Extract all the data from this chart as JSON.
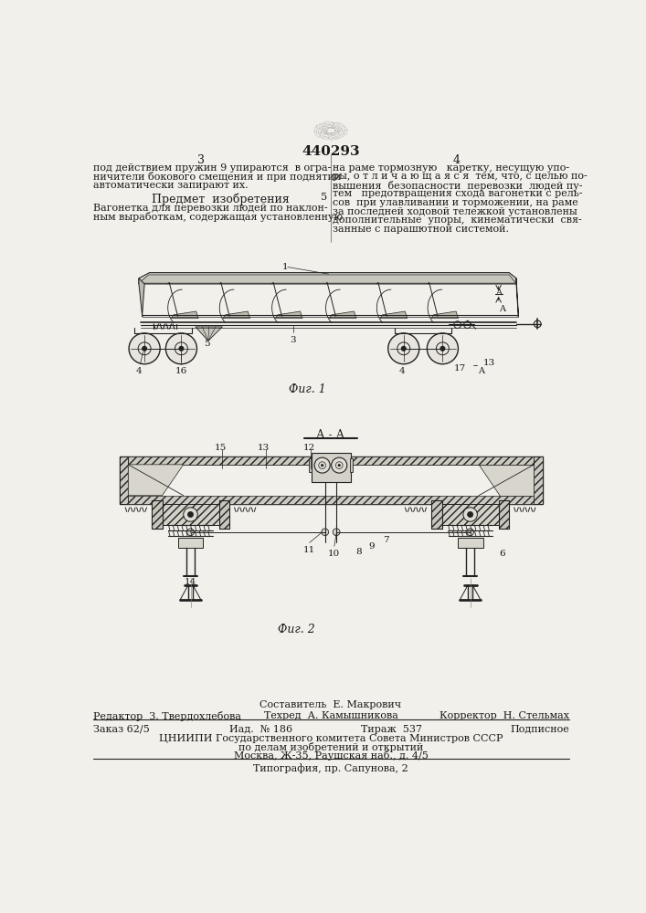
{
  "patent_number": "440293",
  "page_left": "3",
  "page_right": "4",
  "bg_color": "#f2f0eb",
  "text_color": "#1a1a1a",
  "line_color": "#222222",
  "left_col_text": [
    "под действием пружин 9 упираются  в огра-",
    "ничители бокового смещения и при поднятии",
    "автоматически запирают их."
  ],
  "right_col_text": [
    "на раме тормозную   каретку, несущую упо-",
    "ры, о т л и ч а ю щ а я с я  тем, что, с целью по-",
    "вышения  безопасности  перевозки  людей пу-",
    "тем   предотвращения схода вагонетки с рель-",
    "сов  при улавливании и торможении, на раме",
    "за последней ходовой тележкой установлены",
    "дополнительные  упоры,  кинематически  свя-",
    "занные с парашютной системой."
  ],
  "subject_heading": "Предмет  изобретения",
  "subject_text": [
    "Вагонетка для перевозки людей по наклон-",
    "ным выработкам, содержащая установленную"
  ],
  "line_number": "5",
  "fig1_label": "Фиг. 1",
  "fig2_label": "Фиг. 2",
  "fig2_section": "А - А",
  "footer_line1": "Составитель  Е. Макрович",
  "footer_line2_left": "Редактор  З. Твердохлебова",
  "footer_line2_mid": "Техред  А. Камышникова",
  "footer_line2_right": "Корректор  Н. Стельмах",
  "footer_order": "Заказ 62/5",
  "footer_iss": "Иад.  № 186",
  "footer_circ": "Тираж  537",
  "footer_sub": "Подписное",
  "footer_org1": "ЦНИИПИ Государственного комитета Совета Министров СССР",
  "footer_org2": "по делам изобретений и открытий",
  "footer_org3": "Москва, Ж-35, Раушская наб., д. 4/5",
  "footer_print": "Типография, пр. Сапунова, 2"
}
